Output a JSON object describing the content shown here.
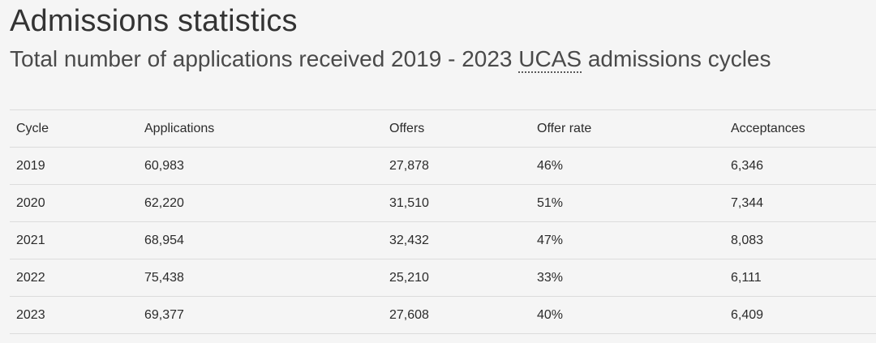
{
  "page": {
    "title": "Admissions statistics",
    "subtitle_before": "Total number of applications received 2019 - 2023 ",
    "subtitle_abbr": "UCAS",
    "subtitle_after": " admissions cycles"
  },
  "table": {
    "headers": [
      "Cycle",
      "Applications",
      "Offers",
      "Offer rate",
      "Acceptances"
    ],
    "rows": [
      [
        "2019",
        "60,983",
        "27,878",
        "46%",
        "6,346"
      ],
      [
        "2020",
        "62,220",
        "31,510",
        "51%",
        "7,344"
      ],
      [
        "2021",
        "68,954",
        "32,432",
        "47%",
        "8,083"
      ],
      [
        "2022",
        "75,438",
        "25,210",
        "33%",
        "6,111"
      ],
      [
        "2023",
        "69,377",
        "27,608",
        "40%",
        "6,409"
      ]
    ]
  }
}
